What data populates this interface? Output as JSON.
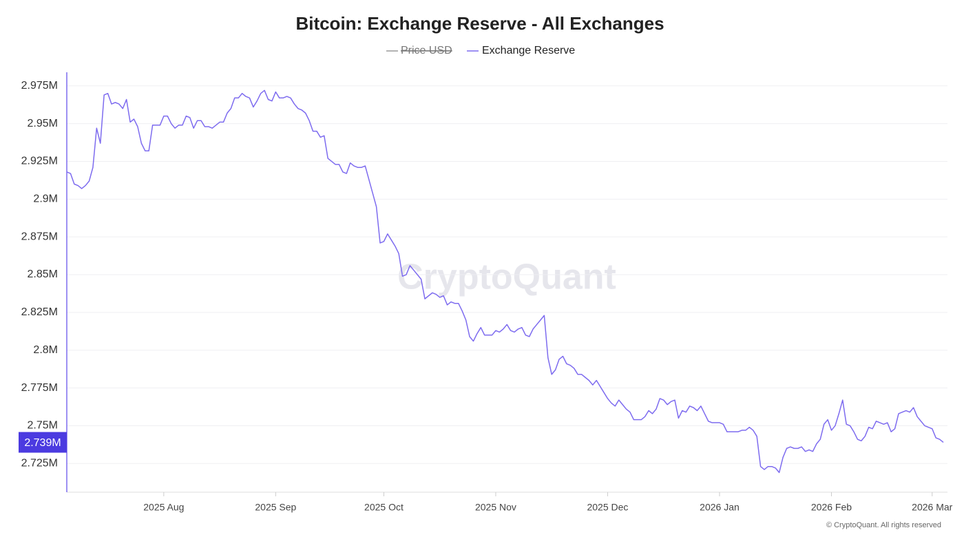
{
  "chart_data": {
    "type": "line",
    "title": "Bitcoin: Exchange Reserve - All Exchanges",
    "hidden_series": [
      {
        "name": "Price USD",
        "color": "#9a9a9a"
      }
    ],
    "watermark": "CryptoQuant",
    "credit": "© CryptoQuant. All rights reserved",
    "price_tag": "2.739M",
    "categories": [
      null,
      null,
      null,
      null,
      null,
      null,
      null,
      null,
      null,
      null,
      null,
      null,
      null,
      null,
      null,
      null,
      null,
      null,
      null,
      null,
      null,
      null,
      null,
      null,
      null,
      null,
      "2025 Aug",
      null,
      null,
      null,
      null,
      null,
      null,
      null,
      null,
      null,
      null,
      null,
      null,
      null,
      null,
      null,
      null,
      null,
      null,
      null,
      null,
      null,
      null,
      null,
      null,
      null,
      null,
      null,
      null,
      null,
      "2025 Sep",
      null,
      null,
      null,
      null,
      null,
      null,
      null,
      null,
      null,
      null,
      null,
      null,
      null,
      null,
      null,
      null,
      null,
      null,
      null,
      null,
      null,
      null,
      null,
      null,
      null,
      null,
      null,
      null,
      "2025 Oct",
      null,
      null,
      null,
      null,
      null,
      null,
      null,
      null,
      null,
      null,
      null,
      null,
      null,
      null,
      null,
      null,
      null,
      null,
      null,
      null,
      null,
      null,
      null,
      null,
      null,
      null,
      null,
      null,
      null,
      "2025 Nov",
      null,
      null,
      null,
      null,
      null,
      null,
      null,
      null,
      null,
      null,
      null,
      null,
      null,
      null,
      null,
      null,
      null,
      null,
      null,
      null,
      null,
      null,
      null,
      null,
      null,
      null,
      null,
      null,
      null,
      "2025 Dec",
      null,
      null,
      null,
      null,
      null,
      null,
      null,
      null,
      null,
      null,
      null,
      null,
      null,
      null,
      null,
      null,
      null,
      null,
      null,
      null,
      null,
      null,
      null,
      null,
      null,
      null,
      null,
      null,
      null,
      "2026 Jan",
      null,
      null,
      null,
      null,
      null,
      null,
      null,
      null,
      null,
      null,
      null,
      null,
      null,
      null,
      null,
      null,
      null,
      null,
      null,
      null,
      null,
      null,
      null,
      null,
      null,
      null,
      null,
      null,
      null,
      "2026 Feb",
      null,
      null,
      null,
      null,
      null,
      null,
      null,
      null,
      null,
      null,
      null,
      null,
      null,
      null,
      null,
      null,
      null,
      null,
      null,
      null,
      null,
      null,
      null,
      null,
      null,
      null,
      "2026 Mar",
      null,
      null,
      null
    ],
    "series": [
      {
        "name": "Exchange Reserve",
        "color": "#7d6bef",
        "values": [
          2918000,
          2917000,
          2910000,
          2909000,
          2907000,
          2909000,
          2912000,
          2921000,
          2947000,
          2937000,
          2969000,
          2970000,
          2963000,
          2964000,
          2963000,
          2960000,
          2966000,
          2951000,
          2953000,
          2948000,
          2937000,
          2932000,
          2932000,
          2949000,
          2949000,
          2949000,
          2955000,
          2955000,
          2950000,
          2947000,
          2949000,
          2949000,
          2955000,
          2954000,
          2947000,
          2952000,
          2952000,
          2948000,
          2948000,
          2947000,
          2949000,
          2951000,
          2951000,
          2957000,
          2960000,
          2967000,
          2967000,
          2970000,
          2968000,
          2967000,
          2961000,
          2965000,
          2970000,
          2972000,
          2966000,
          2965000,
          2971000,
          2967000,
          2967000,
          2968000,
          2967000,
          2963000,
          2960000,
          2959000,
          2957000,
          2952000,
          2945000,
          2945000,
          2941000,
          2942000,
          2927000,
          2925000,
          2923000,
          2923000,
          2918000,
          2917000,
          2924000,
          2922000,
          2921000,
          2921000,
          2922000,
          2913000,
          2904000,
          2895000,
          2871000,
          2872000,
          2877000,
          2873000,
          2869000,
          2864000,
          2849000,
          2850000,
          2856000,
          2853000,
          2850000,
          2847000,
          2834000,
          2836000,
          2838000,
          2837000,
          2835000,
          2836000,
          2830000,
          2832000,
          2831000,
          2831000,
          2826000,
          2820000,
          2809000,
          2806000,
          2811000,
          2815000,
          2810000,
          2810000,
          2810000,
          2813000,
          2812000,
          2814000,
          2817000,
          2813000,
          2812000,
          2814000,
          2815000,
          2810000,
          2809000,
          2814000,
          2817000,
          2820000,
          2823000,
          2795000,
          2784000,
          2787000,
          2794000,
          2796000,
          2791000,
          2790000,
          2788000,
          2784000,
          2784000,
          2782000,
          2780000,
          2777000,
          2780000,
          2776000,
          2772000,
          2768000,
          2765000,
          2763000,
          2767000,
          2764000,
          2761000,
          2759000,
          2754000,
          2754000,
          2754000,
          2756000,
          2760000,
          2758000,
          2761000,
          2768000,
          2767000,
          2764000,
          2766000,
          2767000,
          2755000,
          2760000,
          2759000,
          2763000,
          2762000,
          2760000,
          2763000,
          2758000,
          2753000,
          2752000,
          2752000,
          2752000,
          2751000,
          2746000,
          2746000,
          2746000,
          2746000,
          2747000,
          2747000,
          2749000,
          2747000,
          2743000,
          2723000,
          2721000,
          2723000,
          2723000,
          2722000,
          2719000,
          2729000,
          2735000,
          2736000,
          2735000,
          2735000,
          2736000,
          2733000,
          2734000,
          2733000,
          2738000,
          2741000,
          2751000,
          2754000,
          2747000,
          2750000,
          2758000,
          2767000,
          2751000,
          2750000,
          2746000,
          2741000,
          2740000,
          2743000,
          2749000,
          2748000,
          2753000,
          2752000,
          2751000,
          2752000,
          2746000,
          2748000,
          2758000,
          2759000,
          2760000,
          2759000,
          2762000,
          2756000,
          2753000,
          2750000,
          2749000,
          2748000,
          2742000,
          2741000,
          2739000
        ]
      }
    ],
    "ylim": [
      2706000,
      2984000
    ],
    "yticks": [
      {
        "value": 2725000,
        "label": "2.725M"
      },
      {
        "value": 2750000,
        "label": "2.75M"
      },
      {
        "value": 2775000,
        "label": "2.775M"
      },
      {
        "value": 2800000,
        "label": "2.8M"
      },
      {
        "value": 2825000,
        "label": "2.825M"
      },
      {
        "value": 2850000,
        "label": "2.85M"
      },
      {
        "value": 2875000,
        "label": "2.875M"
      },
      {
        "value": 2900000,
        "label": "2.9M"
      },
      {
        "value": 2925000,
        "label": "2.925M"
      },
      {
        "value": 2950000,
        "label": "2.95M"
      },
      {
        "value": 2975000,
        "label": "2.975M"
      }
    ],
    "grid": true
  }
}
